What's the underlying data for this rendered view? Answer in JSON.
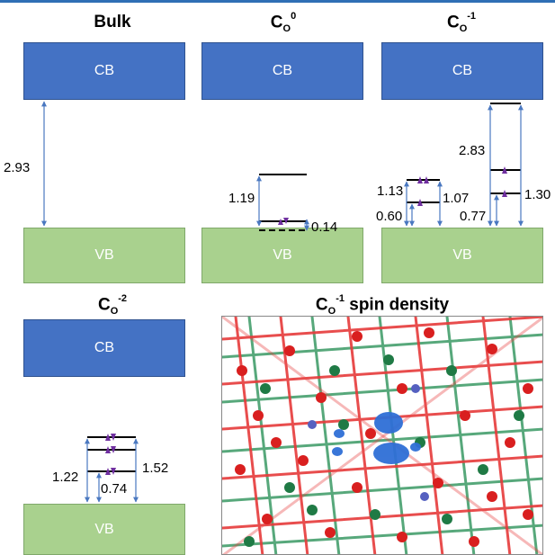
{
  "panels": {
    "bulk": {
      "title": "Bulk",
      "cb_label": "CB",
      "vb_label": "VB",
      "gap": "2.93"
    },
    "co0": {
      "title_main": "C",
      "title_sub": "O",
      "title_sup": "0",
      "cb_label": "CB",
      "vb_label": "VB",
      "levels": [
        "1.19",
        "0.14"
      ]
    },
    "com1": {
      "title_main": "C",
      "title_sub": "O",
      "title_sup": "-1",
      "cb_label": "CB",
      "vb_label": "VB",
      "levels": [
        "1.13",
        "1.07",
        "0.60",
        "2.83",
        "1.30",
        "0.77"
      ]
    },
    "com2": {
      "title_main": "C",
      "title_sub": "O",
      "title_sup": "-2",
      "cb_label": "CB",
      "vb_label": "VB",
      "levels": [
        "1.22",
        "0.74",
        "1.52"
      ]
    },
    "spin": {
      "title_main": "C",
      "title_sub": "O",
      "title_sup": "-1",
      "title_rest": " spin density"
    }
  },
  "colors": {
    "cb": "#4472c4",
    "vb": "#a9d18e",
    "arrow": "#4a78c0",
    "electron": "#7030a0",
    "oxygen": "#e0332f",
    "cation": "#2e8b57",
    "isosurface": "#2f6fd6"
  }
}
